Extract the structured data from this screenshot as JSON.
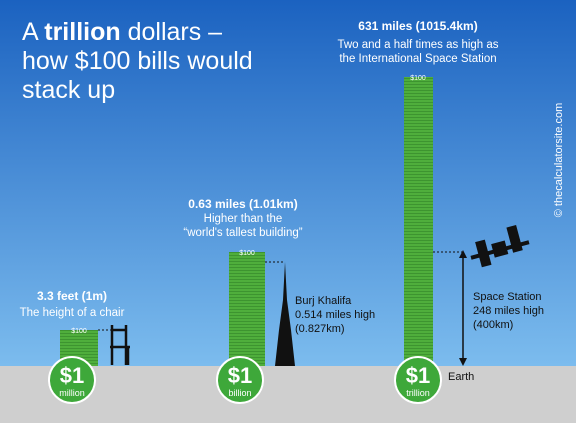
{
  "title": {
    "word1": "A",
    "bold": "trillion",
    "rest": "dollars –",
    "line2": "how $100 bills would",
    "line3": "stack up"
  },
  "watermark": "© thecalculatorsite.com",
  "bill_label": "$100",
  "stacks": [
    {
      "amount": "$1",
      "unit": "million",
      "heading": "3.3 feet (1m)",
      "lines": [
        "The height of a chair"
      ]
    },
    {
      "amount": "$1",
      "unit": "billion",
      "heading": "0.63 miles (1.01km)",
      "lines": [
        "Higher than the",
        "“world's tallest building”"
      ]
    },
    {
      "amount": "$1",
      "unit": "trillion",
      "heading": "631 miles (1015.4km)",
      "lines": [
        "Two and a half times as high as",
        "the International Space Station"
      ]
    }
  ],
  "burj": [
    "Burj Khalifa",
    "0.514 miles high",
    "(0.827km)"
  ],
  "station": [
    "Space Station",
    "248 miles high",
    "(400km)"
  ],
  "earth": "Earth"
}
